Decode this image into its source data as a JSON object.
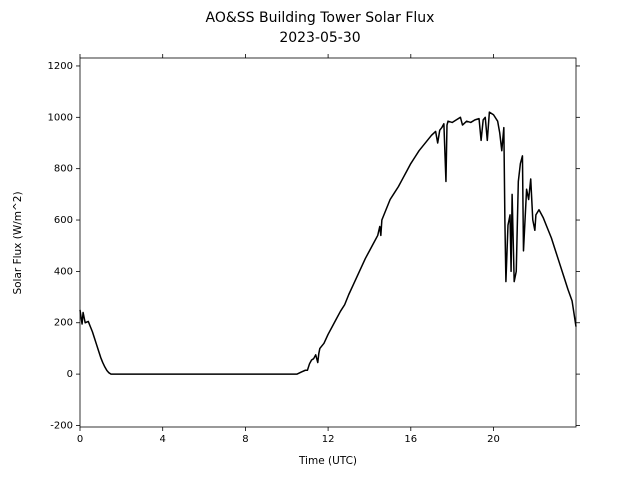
{
  "chart_data": {
    "type": "line",
    "title": "AO&SS Building Tower Solar Flux",
    "subtitle": "2023-05-30",
    "x_label": "Time (UTC)",
    "y_label": "Solar Flux (W/m^2)",
    "xlim": [
      0,
      23.99
    ],
    "ylim": [
      -206,
      1231
    ],
    "xticks": [
      0,
      4,
      8,
      12,
      16,
      20
    ],
    "yticks": [
      -200,
      0,
      200,
      400,
      600,
      800,
      1000,
      1200
    ],
    "x": [
      0,
      0.1,
      0.15,
      0.25,
      0.4,
      0.5,
      0.6,
      0.7,
      0.8,
      0.9,
      1.0,
      1.1,
      1.2,
      1.3,
      1.4,
      1.5,
      10.5,
      10.7,
      10.9,
      11.0,
      11.1,
      11.2,
      11.3,
      11.4,
      11.5,
      11.55,
      11.6,
      11.8,
      12.0,
      12.2,
      12.4,
      12.6,
      12.8,
      13.0,
      13.2,
      13.4,
      13.6,
      13.8,
      14.0,
      14.2,
      14.4,
      14.5,
      14.55,
      14.6,
      14.8,
      15.0,
      15.2,
      15.4,
      15.6,
      15.8,
      16.0,
      16.2,
      16.4,
      16.6,
      16.8,
      17.0,
      17.2,
      17.3,
      17.4,
      17.5,
      17.6,
      17.7,
      17.75,
      17.8,
      18.0,
      18.2,
      18.4,
      18.5,
      18.7,
      18.9,
      19.1,
      19.3,
      19.4,
      19.5,
      19.6,
      19.7,
      19.8,
      20.0,
      20.2,
      20.3,
      20.4,
      20.5,
      20.55,
      20.6,
      20.7,
      20.8,
      20.85,
      20.9,
      21.0,
      21.1,
      21.2,
      21.3,
      21.4,
      21.45,
      21.6,
      21.7,
      21.8,
      21.9,
      22.0,
      22.05,
      22.2,
      22.4,
      22.6,
      22.8,
      23.0,
      23.2,
      23.4,
      23.6,
      23.8,
      23.99
    ],
    "series": [
      {
        "color": "#000000",
        "values": [
          250,
          195,
          240,
          200,
          205,
          185,
          165,
          140,
          115,
          90,
          65,
          45,
          28,
          14,
          5,
          0,
          0,
          8,
          15,
          15,
          40,
          55,
          60,
          75,
          45,
          80,
          100,
          120,
          155,
          185,
          215,
          245,
          270,
          310,
          345,
          380,
          415,
          450,
          480,
          510,
          540,
          575,
          540,
          600,
          640,
          680,
          705,
          730,
          760,
          790,
          820,
          845,
          870,
          890,
          910,
          930,
          945,
          900,
          950,
          960,
          975,
          750,
          970,
          985,
          980,
          990,
          1000,
          970,
          985,
          980,
          990,
          995,
          910,
          990,
          1000,
          910,
          1020,
          1010,
          985,
          940,
          870,
          960,
          600,
          360,
          580,
          620,
          400,
          700,
          360,
          400,
          750,
          820,
          850,
          480,
          720,
          680,
          760,
          600,
          560,
          620,
          640,
          610,
          570,
          530,
          480,
          430,
          380,
          330,
          285,
          185
        ]
      }
    ]
  }
}
